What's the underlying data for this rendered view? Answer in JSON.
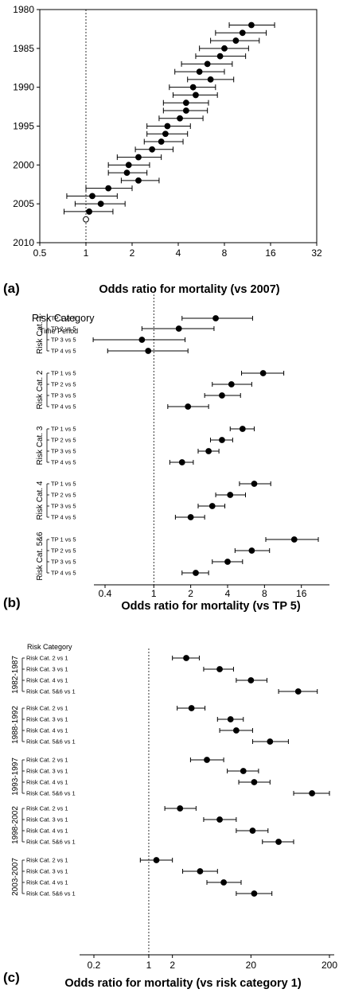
{
  "chart_data": [
    {
      "type": "scatter",
      "panel_label": "(a)",
      "xlabel": "Odds ratio for mortality (vs 2007)",
      "x_scale": "log2",
      "x_ticks": [
        "0.5",
        "1",
        "2",
        "4",
        "8",
        "16",
        "32"
      ],
      "y_ticks": [
        "1980",
        "1985",
        "1990",
        "1995",
        "2000",
        "2005",
        "2010"
      ],
      "ylim": [
        1980,
        2010
      ],
      "reference_line": 1,
      "points": [
        {
          "year": 1982,
          "or": 12.0,
          "lo": 8.6,
          "hi": 17.0
        },
        {
          "year": 1983,
          "or": 10.5,
          "lo": 7.0,
          "hi": 15.0
        },
        {
          "year": 1984,
          "or": 9.5,
          "lo": 6.5,
          "hi": 13.5
        },
        {
          "year": 1985,
          "or": 8.0,
          "lo": 5.5,
          "hi": 11.5
        },
        {
          "year": 1986,
          "or": 7.5,
          "lo": 5.2,
          "hi": 11.0
        },
        {
          "year": 1987,
          "or": 6.2,
          "lo": 4.2,
          "hi": 9.0
        },
        {
          "year": 1988,
          "or": 5.5,
          "lo": 3.8,
          "hi": 8.0
        },
        {
          "year": 1989,
          "or": 6.5,
          "lo": 4.6,
          "hi": 9.2
        },
        {
          "year": 1990,
          "or": 5.0,
          "lo": 3.5,
          "hi": 7.0
        },
        {
          "year": 1991,
          "or": 5.2,
          "lo": 3.7,
          "hi": 7.2
        },
        {
          "year": 1992,
          "or": 4.5,
          "lo": 3.2,
          "hi": 6.3
        },
        {
          "year": 1993,
          "or": 4.5,
          "lo": 3.2,
          "hi": 6.2
        },
        {
          "year": 1994,
          "or": 4.1,
          "lo": 3.0,
          "hi": 5.8
        },
        {
          "year": 1995,
          "or": 3.4,
          "lo": 2.5,
          "hi": 4.8
        },
        {
          "year": 1996,
          "or": 3.3,
          "lo": 2.5,
          "hi": 4.6
        },
        {
          "year": 1997,
          "or": 3.1,
          "lo": 2.4,
          "hi": 4.3
        },
        {
          "year": 1998,
          "or": 2.7,
          "lo": 2.1,
          "hi": 3.7
        },
        {
          "year": 1999,
          "or": 2.2,
          "lo": 1.6,
          "hi": 3.1
        },
        {
          "year": 2000,
          "or": 1.9,
          "lo": 1.4,
          "hi": 2.6
        },
        {
          "year": 2001,
          "or": 1.85,
          "lo": 1.4,
          "hi": 2.5
        },
        {
          "year": 2002,
          "or": 2.2,
          "lo": 1.7,
          "hi": 3.0
        },
        {
          "year": 2003,
          "or": 1.4,
          "lo": 1.0,
          "hi": 2.0
        },
        {
          "year": 2004,
          "or": 1.1,
          "lo": 0.75,
          "hi": 1.6
        },
        {
          "year": 2005,
          "or": 1.25,
          "lo": 0.85,
          "hi": 1.8
        },
        {
          "year": 2006,
          "or": 1.05,
          "lo": 0.72,
          "hi": 1.5
        },
        {
          "year": 2007,
          "or": 1.0,
          "reference": true
        }
      ]
    },
    {
      "type": "scatter",
      "panel_label": "(b)",
      "title": "Risk Category",
      "subtitle": "Time Period",
      "xlabel": "Odds ratio for mortality (vs TP 5)",
      "x_scale": "log2",
      "x_ticks": [
        "0.4",
        "1",
        "2",
        "4",
        "8",
        "16"
      ],
      "reference_line": 1,
      "groups": [
        {
          "name": "Risk Cat. 1",
          "rows": [
            {
              "label": "TP 1 vs 5",
              "or": 3.2,
              "lo": 1.7,
              "hi": 6.4
            },
            {
              "label": "TP 2 vs 5",
              "or": 1.6,
              "lo": 0.8,
              "hi": 3.1
            },
            {
              "label": "TP 3 vs 5",
              "or": 0.8,
              "lo": 0.32,
              "hi": 1.8
            },
            {
              "label": "TP 4 vs 5",
              "or": 0.9,
              "lo": 0.42,
              "hi": 1.9
            }
          ]
        },
        {
          "name": "Risk Cat. 2",
          "rows": [
            {
              "label": "TP 1 vs 5",
              "or": 7.8,
              "lo": 5.2,
              "hi": 11.5
            },
            {
              "label": "TP 2 vs 5",
              "or": 4.3,
              "lo": 3.0,
              "hi": 6.3
            },
            {
              "label": "TP 3 vs 5",
              "or": 3.6,
              "lo": 2.6,
              "hi": 5.1
            },
            {
              "label": "TP 4 vs 5",
              "or": 1.9,
              "lo": 1.3,
              "hi": 2.8
            }
          ]
        },
        {
          "name": "Risk Cat. 3",
          "rows": [
            {
              "label": "TP 1 vs 5",
              "or": 5.3,
              "lo": 4.2,
              "hi": 6.6
            },
            {
              "label": "TP 2 vs 5",
              "or": 3.6,
              "lo": 2.9,
              "hi": 4.4
            },
            {
              "label": "TP 3 vs 5",
              "or": 2.8,
              "lo": 2.3,
              "hi": 3.4
            },
            {
              "label": "TP 4 vs 5",
              "or": 1.7,
              "lo": 1.35,
              "hi": 2.1
            }
          ]
        },
        {
          "name": "Risk Cat. 4",
          "rows": [
            {
              "label": "TP 1 vs 5",
              "or": 6.6,
              "lo": 5.0,
              "hi": 9.0
            },
            {
              "label": "TP 2 vs 5",
              "or": 4.2,
              "lo": 3.2,
              "hi": 5.6
            },
            {
              "label": "TP 3 vs 5",
              "or": 3.0,
              "lo": 2.3,
              "hi": 3.8
            },
            {
              "label": "TP 4 vs 5",
              "or": 2.0,
              "lo": 1.5,
              "hi": 2.6
            }
          ]
        },
        {
          "name": "Risk Cat. 5&6",
          "rows": [
            {
              "label": "TP 1 vs 5",
              "or": 14.0,
              "lo": 8.2,
              "hi": 22.0
            },
            {
              "label": "TP 2 vs 5",
              "or": 6.3,
              "lo": 4.6,
              "hi": 8.8
            },
            {
              "label": "TP 3 vs 5",
              "or": 4.0,
              "lo": 3.0,
              "hi": 5.3
            },
            {
              "label": "TP 4 vs 5",
              "or": 2.2,
              "lo": 1.7,
              "hi": 2.8
            }
          ]
        }
      ]
    },
    {
      "type": "scatter",
      "panel_label": "(c)",
      "title": "Risk Category",
      "xlabel": "Odds ratio for mortality (vs risk category 1)",
      "x_scale": "log10",
      "x_ticks": [
        "0.2",
        "1",
        "2",
        "20",
        "200"
      ],
      "reference_line": 1,
      "groups": [
        {
          "name": "1982-1987",
          "rows": [
            {
              "label": "Risk Cat. 2 vs 1",
              "or": 3.0,
              "lo": 2.0,
              "hi": 4.4
            },
            {
              "label": "Risk Cat. 3 vs 1",
              "or": 8.0,
              "lo": 5.0,
              "hi": 12.0
            },
            {
              "label": "Risk Cat. 4 vs 1",
              "or": 20.0,
              "lo": 13.0,
              "hi": 32.0
            },
            {
              "label": "Risk Cat. 5&6 vs 1",
              "or": 80.0,
              "lo": 45.0,
              "hi": 140.0
            }
          ]
        },
        {
          "name": "1988-1992",
          "rows": [
            {
              "label": "Risk Cat. 2 vs 1",
              "or": 3.5,
              "lo": 2.3,
              "hi": 5.2
            },
            {
              "label": "Risk Cat. 3 vs 1",
              "or": 11.0,
              "lo": 7.5,
              "hi": 16.0
            },
            {
              "label": "Risk Cat. 4 vs 1",
              "or": 13.0,
              "lo": 8.0,
              "hi": 21.0
            },
            {
              "label": "Risk Cat. 5&6 vs 1",
              "or": 35.0,
              "lo": 21.0,
              "hi": 60.0
            }
          ]
        },
        {
          "name": "1993-1997",
          "rows": [
            {
              "label": "Risk Cat. 2 vs 1",
              "or": 5.5,
              "lo": 3.4,
              "hi": 9.0
            },
            {
              "label": "Risk Cat. 3 vs 1",
              "or": 16.0,
              "lo": 10.0,
              "hi": 25.0
            },
            {
              "label": "Risk Cat. 4 vs 1",
              "or": 22.0,
              "lo": 14.0,
              "hi": 35.0
            },
            {
              "label": "Risk Cat. 5&6 vs 1",
              "or": 120.0,
              "lo": 70.0,
              "hi": 200.0
            }
          ]
        },
        {
          "name": "1998-2002",
          "rows": [
            {
              "label": "Risk Cat. 2 vs 1",
              "or": 2.5,
              "lo": 1.6,
              "hi": 4.0
            },
            {
              "label": "Risk Cat. 3 vs 1",
              "or": 8.0,
              "lo": 5.0,
              "hi": 13.0
            },
            {
              "label": "Risk Cat. 4 vs 1",
              "or": 21.0,
              "lo": 13.0,
              "hi": 33.0
            },
            {
              "label": "Risk Cat. 5&6 vs 1",
              "or": 45.0,
              "lo": 28.0,
              "hi": 70.0
            }
          ]
        },
        {
          "name": "2003-2007",
          "rows": [
            {
              "label": "Risk Cat. 2 vs 1",
              "or": 1.25,
              "lo": 0.78,
              "hi": 2.0
            },
            {
              "label": "Risk Cat. 3 vs 1",
              "or": 4.5,
              "lo": 2.7,
              "hi": 7.5
            },
            {
              "label": "Risk Cat. 4 vs 1",
              "or": 9.0,
              "lo": 5.5,
              "hi": 15.0
            },
            {
              "label": "Risk Cat. 5&6 vs 1",
              "or": 22.0,
              "lo": 13.0,
              "hi": 37.0
            }
          ]
        }
      ]
    }
  ]
}
